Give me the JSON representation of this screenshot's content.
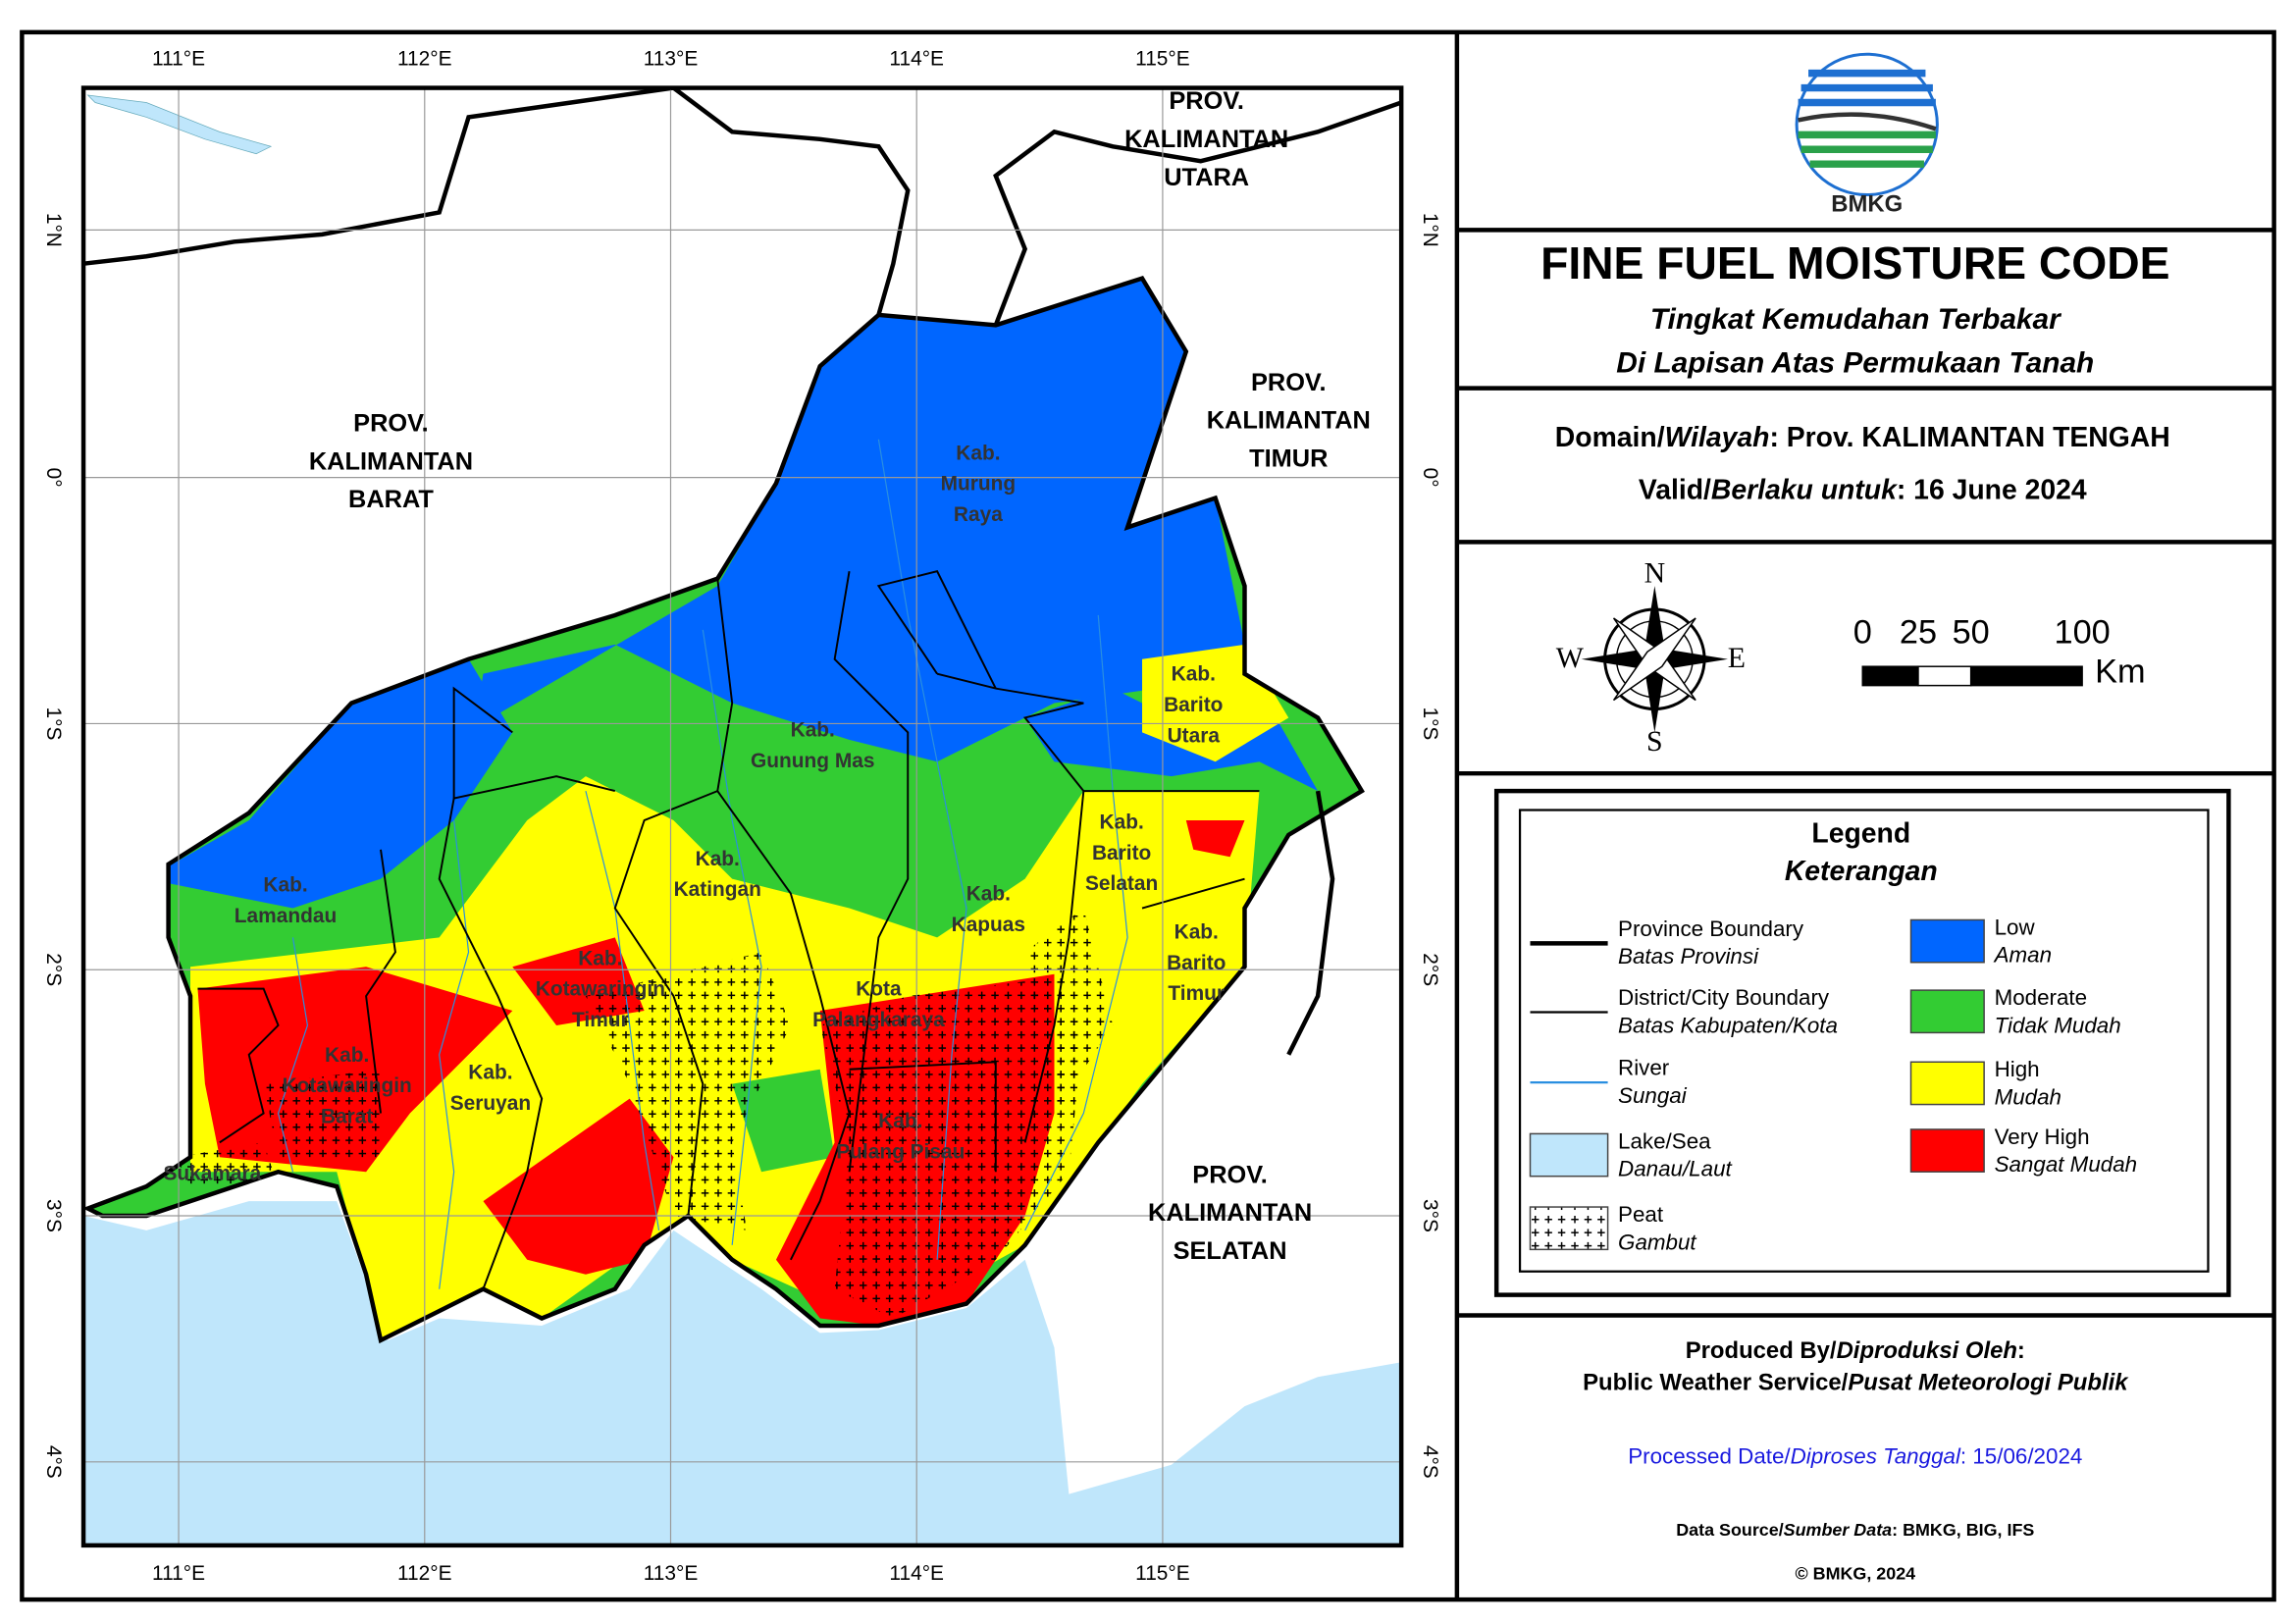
{
  "map": {
    "lon_labels": [
      "111°E",
      "112°E",
      "113°E",
      "114°E",
      "115°E"
    ],
    "lat_labels": [
      "1°N",
      "0°",
      "1°S",
      "2°S",
      "3°S",
      "4°S"
    ],
    "province_labels": [
      [
        "PROV.",
        "KALIMANTAN",
        "UTARA"
      ],
      [
        "PROV.",
        "KALIMANTAN",
        "BARAT"
      ],
      [
        "PROV.",
        "KALIMANTAN",
        "TIMUR"
      ],
      [
        "PROV.",
        "KALIMANTAN",
        "SELATAN"
      ]
    ],
    "district_labels": [
      [
        "Kab.",
        "Murung",
        "Raya"
      ],
      [
        "Kab.",
        "Gunung Mas"
      ],
      [
        "Kab.",
        "Barito",
        "Utara"
      ],
      [
        "Kab.",
        "Lamandau"
      ],
      [
        "Kab.",
        "Katingan"
      ],
      [
        "Kab.",
        "Barito",
        "Selatan"
      ],
      [
        "Kab.",
        "Kapuas"
      ],
      [
        "Kab.",
        "Barito",
        "Timur"
      ],
      [
        "Kab.",
        "Kotawaringin",
        "Timur"
      ],
      [
        "Kota",
        "Palangkaraya"
      ],
      [
        "Kab.",
        "Kotawaringin",
        "Barat"
      ],
      [
        "Kab.",
        "Seruyan"
      ],
      [
        "Kab.",
        "Pulang Pisau"
      ],
      [
        "Sukamara"
      ]
    ]
  },
  "header": {
    "logo_text": "BMKG",
    "title": "FINE FUEL MOISTURE CODE",
    "subtitle_lines": [
      "Tingkat Kemudahan Terbakar",
      "Di Lapisan Atas Permukaan Tanah"
    ]
  },
  "info": {
    "domain_label": "Domain/",
    "domain_label_local": "Wilayah",
    "domain_value": ": Prov. KALIMANTAN TENGAH",
    "valid_label": "Valid/",
    "valid_label_local": "Berlaku untuk",
    "valid_value": ": 16 June 2024"
  },
  "compass": {
    "n": "N",
    "e": "E",
    "s": "S",
    "w": "W"
  },
  "scale": {
    "labels": [
      "0",
      "25",
      "50",
      "100"
    ],
    "unit": "Km"
  },
  "legend": {
    "title": "Legend",
    "title_local": "Keterangan",
    "items": [
      {
        "label": "Province Boundary",
        "label_local": "Batas Provinsi"
      },
      {
        "label": "District/City Boundary",
        "label_local": "Batas Kabupaten/Kota"
      },
      {
        "label": "River",
        "label_local": "Sungai"
      },
      {
        "label": "Lake/Sea",
        "label_local": "Danau/Laut"
      },
      {
        "label": "Peat",
        "label_local": "Gambut"
      },
      {
        "label": "Low",
        "label_local": "Aman"
      },
      {
        "label": "Moderate",
        "label_local": "Tidak Mudah"
      },
      {
        "label": "High",
        "label_local": "Mudah"
      },
      {
        "label": "Very High",
        "label_local": "Sangat Mudah"
      }
    ]
  },
  "credits": {
    "produced_label": "Produced By/",
    "produced_label_local": "Diproduksi Oleh",
    "produced_colon": ":",
    "producer": "Public Weather Service/",
    "producer_local": "Pusat Meteorologi Publik",
    "processed_label": "Processed Date/",
    "processed_label_local": "Diproses Tanggal",
    "processed_value": ": 15/06/2024",
    "source_label": "Data Source/",
    "source_label_local": "Sumber Data",
    "source_value": ": BMKG, BIG, IFS",
    "copyright": "© BMKG, 2024"
  }
}
